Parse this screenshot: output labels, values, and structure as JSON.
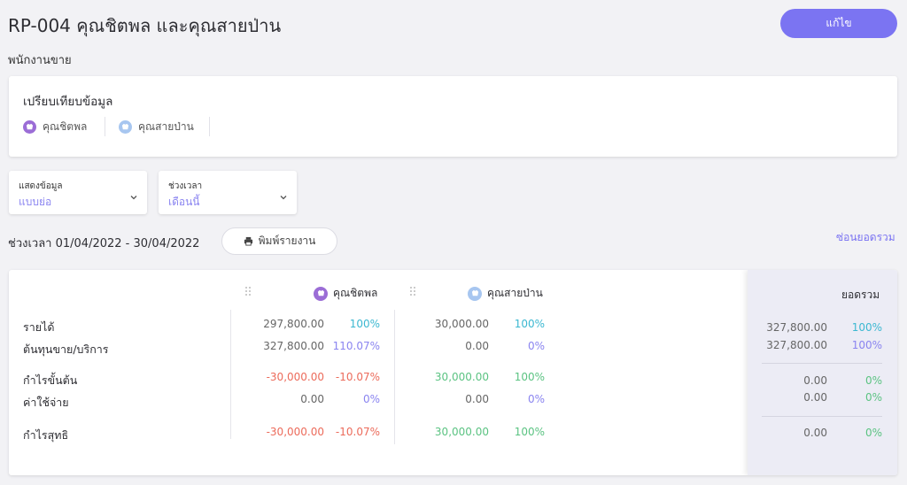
{
  "header": {
    "title": "RP-004 คุณชิตพล และคุณสายป่าน",
    "edit_label": "แก้ไข",
    "subtitle": "พนักงานขาย"
  },
  "compare": {
    "title": "เปรียบเทียบข้อมูล",
    "people": [
      {
        "name": "คุณชิตพล",
        "color": "#9b6dd6"
      },
      {
        "name": "คุณสายป่าน",
        "color": "#a7c6f0"
      }
    ]
  },
  "filters": {
    "display": {
      "label": "แสดงข้อมูล",
      "value": "แบบย่อ"
    },
    "period": {
      "label": "ช่วงเวลา",
      "value": "เดือนนี้"
    }
  },
  "period_text": "ช่วงเวลา 01/04/2022 - 30/04/2022",
  "print_label": "พิมพ์รายงาน",
  "hide_total_label": "ซ่อนยอดรวม",
  "report": {
    "columns": [
      "คุณชิตพล",
      "คุณสายป่าน"
    ],
    "total_label": "ยอดรวม",
    "rows": [
      {
        "label": "รายได้",
        "c1": [
          "297,800.00",
          "100%"
        ],
        "c2": [
          "30,000.00",
          "100%"
        ],
        "total": [
          "327,800.00",
          "100%"
        ]
      },
      {
        "label": "ต้นทุนขาย/บริการ",
        "c1": [
          "327,800.00",
          "110.07%"
        ],
        "c2": [
          "0.00",
          "0%"
        ],
        "total": [
          "327,800.00",
          "100%"
        ]
      },
      {
        "label": "กำไรขั้นต้น",
        "c1": [
          "-30,000.00",
          "-10.07%"
        ],
        "c2": [
          "30,000.00",
          "100%"
        ],
        "total": [
          "0.00",
          "0%"
        ]
      },
      {
        "label": "ค่าใช้จ่าย",
        "c1": [
          "0.00",
          "0%"
        ],
        "c2": [
          "0.00",
          "0%"
        ],
        "total": [
          "0.00",
          "0%"
        ]
      },
      {
        "label": "กำไรสุทธิ",
        "c1": [
          "-30,000.00",
          "-10.07%"
        ],
        "c2": [
          "30,000.00",
          "100%"
        ],
        "total": [
          "0.00",
          "0%"
        ]
      }
    ]
  }
}
